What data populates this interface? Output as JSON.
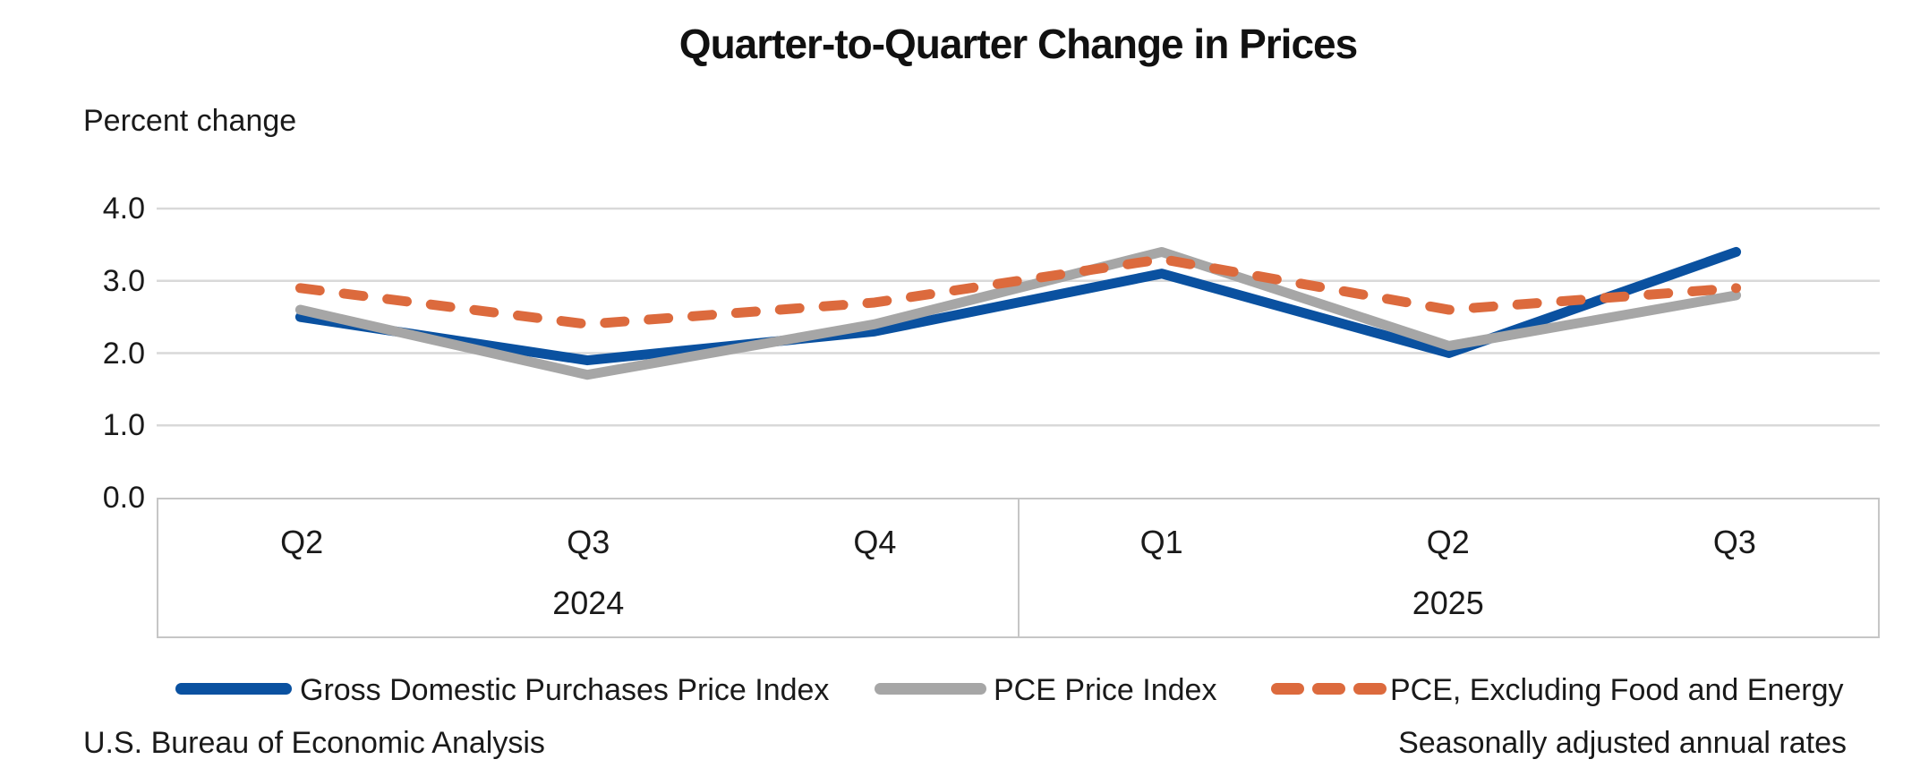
{
  "title": "Quarter-to-Quarter Change in Prices",
  "y_axis_unit": "Percent change",
  "footer": {
    "source": "U.S. Bureau of Economic Analysis",
    "note": "Seasonally adjusted annual rates"
  },
  "colors": {
    "gross_domestic_purchases": "#0a51a0",
    "pce": "#a6a6a6",
    "core_pce": "#dc6a3d",
    "gridline": "#d9d9d9",
    "band_border": "#c6c6c6",
    "text": "#1a1a1a"
  },
  "chart_data": {
    "type": "line",
    "title": "Quarter-to-Quarter Change in Prices",
    "ylabel": "Percent change",
    "xlabel": "",
    "ylim": [
      0,
      4
    ],
    "ytick_step": 1,
    "yticks": [
      "4.0",
      "3.0",
      "2.0",
      "1.0",
      "0.0"
    ],
    "grid": "horizontal",
    "legend_position": "bottom",
    "categories": [
      "Q2",
      "Q3",
      "Q4",
      "Q1",
      "Q2",
      "Q3"
    ],
    "year_groups": [
      {
        "label": "2024",
        "count": 3
      },
      {
        "label": "2025",
        "count": 3
      }
    ],
    "series": [
      {
        "name": "Gross Domestic Purchases Price Index",
        "color": "#0a51a0",
        "style": "solid",
        "values": [
          2.5,
          1.9,
          2.3,
          3.1,
          2.0,
          3.4
        ]
      },
      {
        "name": "PCE Price Index",
        "color": "#a6a6a6",
        "style": "solid",
        "values": [
          2.6,
          1.7,
          2.4,
          3.4,
          2.1,
          2.8
        ]
      },
      {
        "name": "PCE, Excluding Food and Energy",
        "color": "#dc6a3d",
        "style": "dashed",
        "values": [
          2.9,
          2.4,
          2.7,
          3.3,
          2.6,
          2.9
        ]
      }
    ]
  }
}
